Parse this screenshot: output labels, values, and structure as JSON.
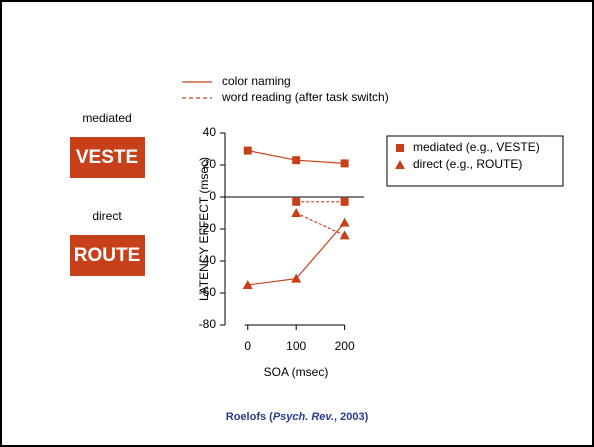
{
  "chart_data": {
    "type": "line",
    "color": "#c8401a",
    "x": [
      0,
      100,
      200
    ],
    "xticks": [
      0,
      100,
      200
    ],
    "xlim": [
      -47,
      240
    ],
    "ylim": [
      -80,
      40
    ],
    "yticks": [
      -80,
      -60,
      -40,
      -20,
      0,
      20,
      40
    ],
    "xlabel": "SOA (msec)",
    "ylabel": "LATENCY EFFECT (msec)",
    "series": [
      {
        "marker": "square",
        "dash": false,
        "values": [
          29,
          23,
          21
        ]
      },
      {
        "marker": "triangle",
        "dash": false,
        "values": [
          -55,
          -51,
          -16
        ]
      },
      {
        "marker": "square",
        "dash": true,
        "values": [
          null,
          -3,
          -3
        ]
      },
      {
        "marker": "triangle",
        "dash": true,
        "values": [
          null,
          -10,
          -24
        ]
      }
    ],
    "line_legend": [
      {
        "label": "color naming",
        "dash": false
      },
      {
        "label": "word reading (after task switch)",
        "dash": true
      }
    ],
    "marker_legend": [
      {
        "label": "mediated (e.g., VESTE)",
        "marker": "square"
      },
      {
        "label": "direct (e.g., ROUTE)",
        "marker": "triangle"
      }
    ],
    "examples": [
      {
        "kind": "mediated",
        "word": "VESTE"
      },
      {
        "kind": "direct",
        "word": "ROUTE"
      }
    ],
    "source": {
      "author": "Roelofs (",
      "journal": "Psych. Rev.",
      "rest": ", 2003)"
    }
  }
}
